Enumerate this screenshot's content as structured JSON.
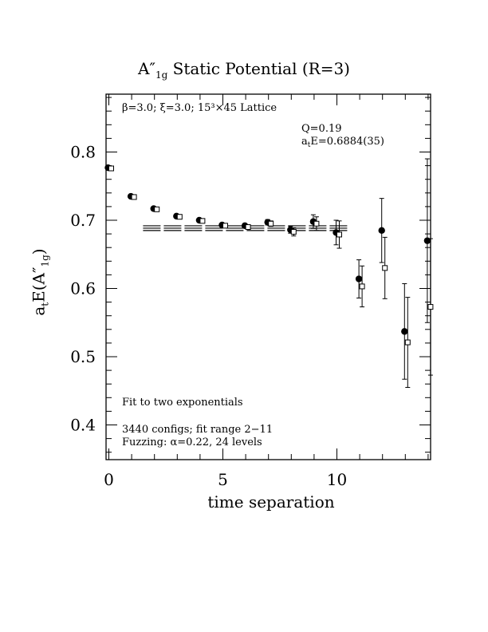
{
  "title": {
    "main": "A″",
    "sub": "1g",
    "rest": "Static Potential (R=3)"
  },
  "axes": {
    "xlabel": "time separation",
    "ylabel": {
      "pre": "a",
      "sub1": "t",
      "mid": "E(A″",
      "sub2": "1g",
      "post": ")"
    }
  },
  "annotations": {
    "lattice": "β=3.0; ξ=3.0; 15³×45 Lattice",
    "q": "Q=0.19",
    "energy": {
      "pre": "a",
      "sub": "t",
      "post": "E=0.6884(35)"
    },
    "fit_desc": "Fit to two exponentials",
    "configs": "3440 configs; fit range 2−11",
    "fuzzing": "Fuzzing: α=0.22, 24 levels"
  },
  "chart_data": {
    "type": "scatter",
    "xlim": [
      0,
      14
    ],
    "ylim": [
      0.35,
      0.885
    ],
    "x_ticks": [
      0,
      5,
      10
    ],
    "y_ticks": [
      0.4,
      0.5,
      0.6,
      0.7,
      0.8
    ],
    "x_tick_labels": [
      "0",
      "5",
      "10"
    ],
    "y_tick_labels": [
      "0.4",
      "0.5",
      "0.6",
      "0.7",
      "0.8"
    ],
    "series": [
      {
        "marker": "filled-circle",
        "points": [
          {
            "x": 0,
            "y": 0.777,
            "err": 0.002
          },
          {
            "x": 1,
            "y": 0.735,
            "err": 0.002
          },
          {
            "x": 2,
            "y": 0.717,
            "err": 0.002
          },
          {
            "x": 3,
            "y": 0.706,
            "err": 0.002
          },
          {
            "x": 4,
            "y": 0.7,
            "err": 0.002
          },
          {
            "x": 5,
            "y": 0.693,
            "err": 0.002
          },
          {
            "x": 6,
            "y": 0.692,
            "err": 0.003
          },
          {
            "x": 7,
            "y": 0.697,
            "err": 0.004
          },
          {
            "x": 8,
            "y": 0.686,
            "err": 0.005
          },
          {
            "x": 9,
            "y": 0.698,
            "err": 0.01
          },
          {
            "x": 10,
            "y": 0.682,
            "err": 0.018
          },
          {
            "x": 11,
            "y": 0.614,
            "err": 0.028
          },
          {
            "x": 12,
            "y": 0.685,
            "err": 0.047
          },
          {
            "x": 13,
            "y": 0.537,
            "err": 0.07
          },
          {
            "x": 14,
            "y": 0.67,
            "err": 0.12
          }
        ]
      },
      {
        "marker": "open-square",
        "points": [
          {
            "x": 0,
            "y": 0.776,
            "err": 0.002
          },
          {
            "x": 1,
            "y": 0.734,
            "err": 0.002
          },
          {
            "x": 2,
            "y": 0.716,
            "err": 0.002
          },
          {
            "x": 3,
            "y": 0.705,
            "err": 0.002
          },
          {
            "x": 4,
            "y": 0.699,
            "err": 0.002
          },
          {
            "x": 5,
            "y": 0.692,
            "err": 0.002
          },
          {
            "x": 6,
            "y": 0.69,
            "err": 0.003
          },
          {
            "x": 7,
            "y": 0.695,
            "err": 0.004
          },
          {
            "x": 8,
            "y": 0.683,
            "err": 0.006
          },
          {
            "x": 9,
            "y": 0.695,
            "err": 0.01
          },
          {
            "x": 10,
            "y": 0.679,
            "err": 0.02
          },
          {
            "x": 11,
            "y": 0.603,
            "err": 0.03
          },
          {
            "x": 12,
            "y": 0.63,
            "err": 0.045
          },
          {
            "x": 13,
            "y": 0.521,
            "err": 0.066
          },
          {
            "x": 14,
            "y": 0.573,
            "err": 0.1
          }
        ]
      }
    ],
    "fit": {
      "value": 0.6884,
      "error": 0.0035,
      "x_range": [
        1.5,
        10.5
      ]
    }
  }
}
